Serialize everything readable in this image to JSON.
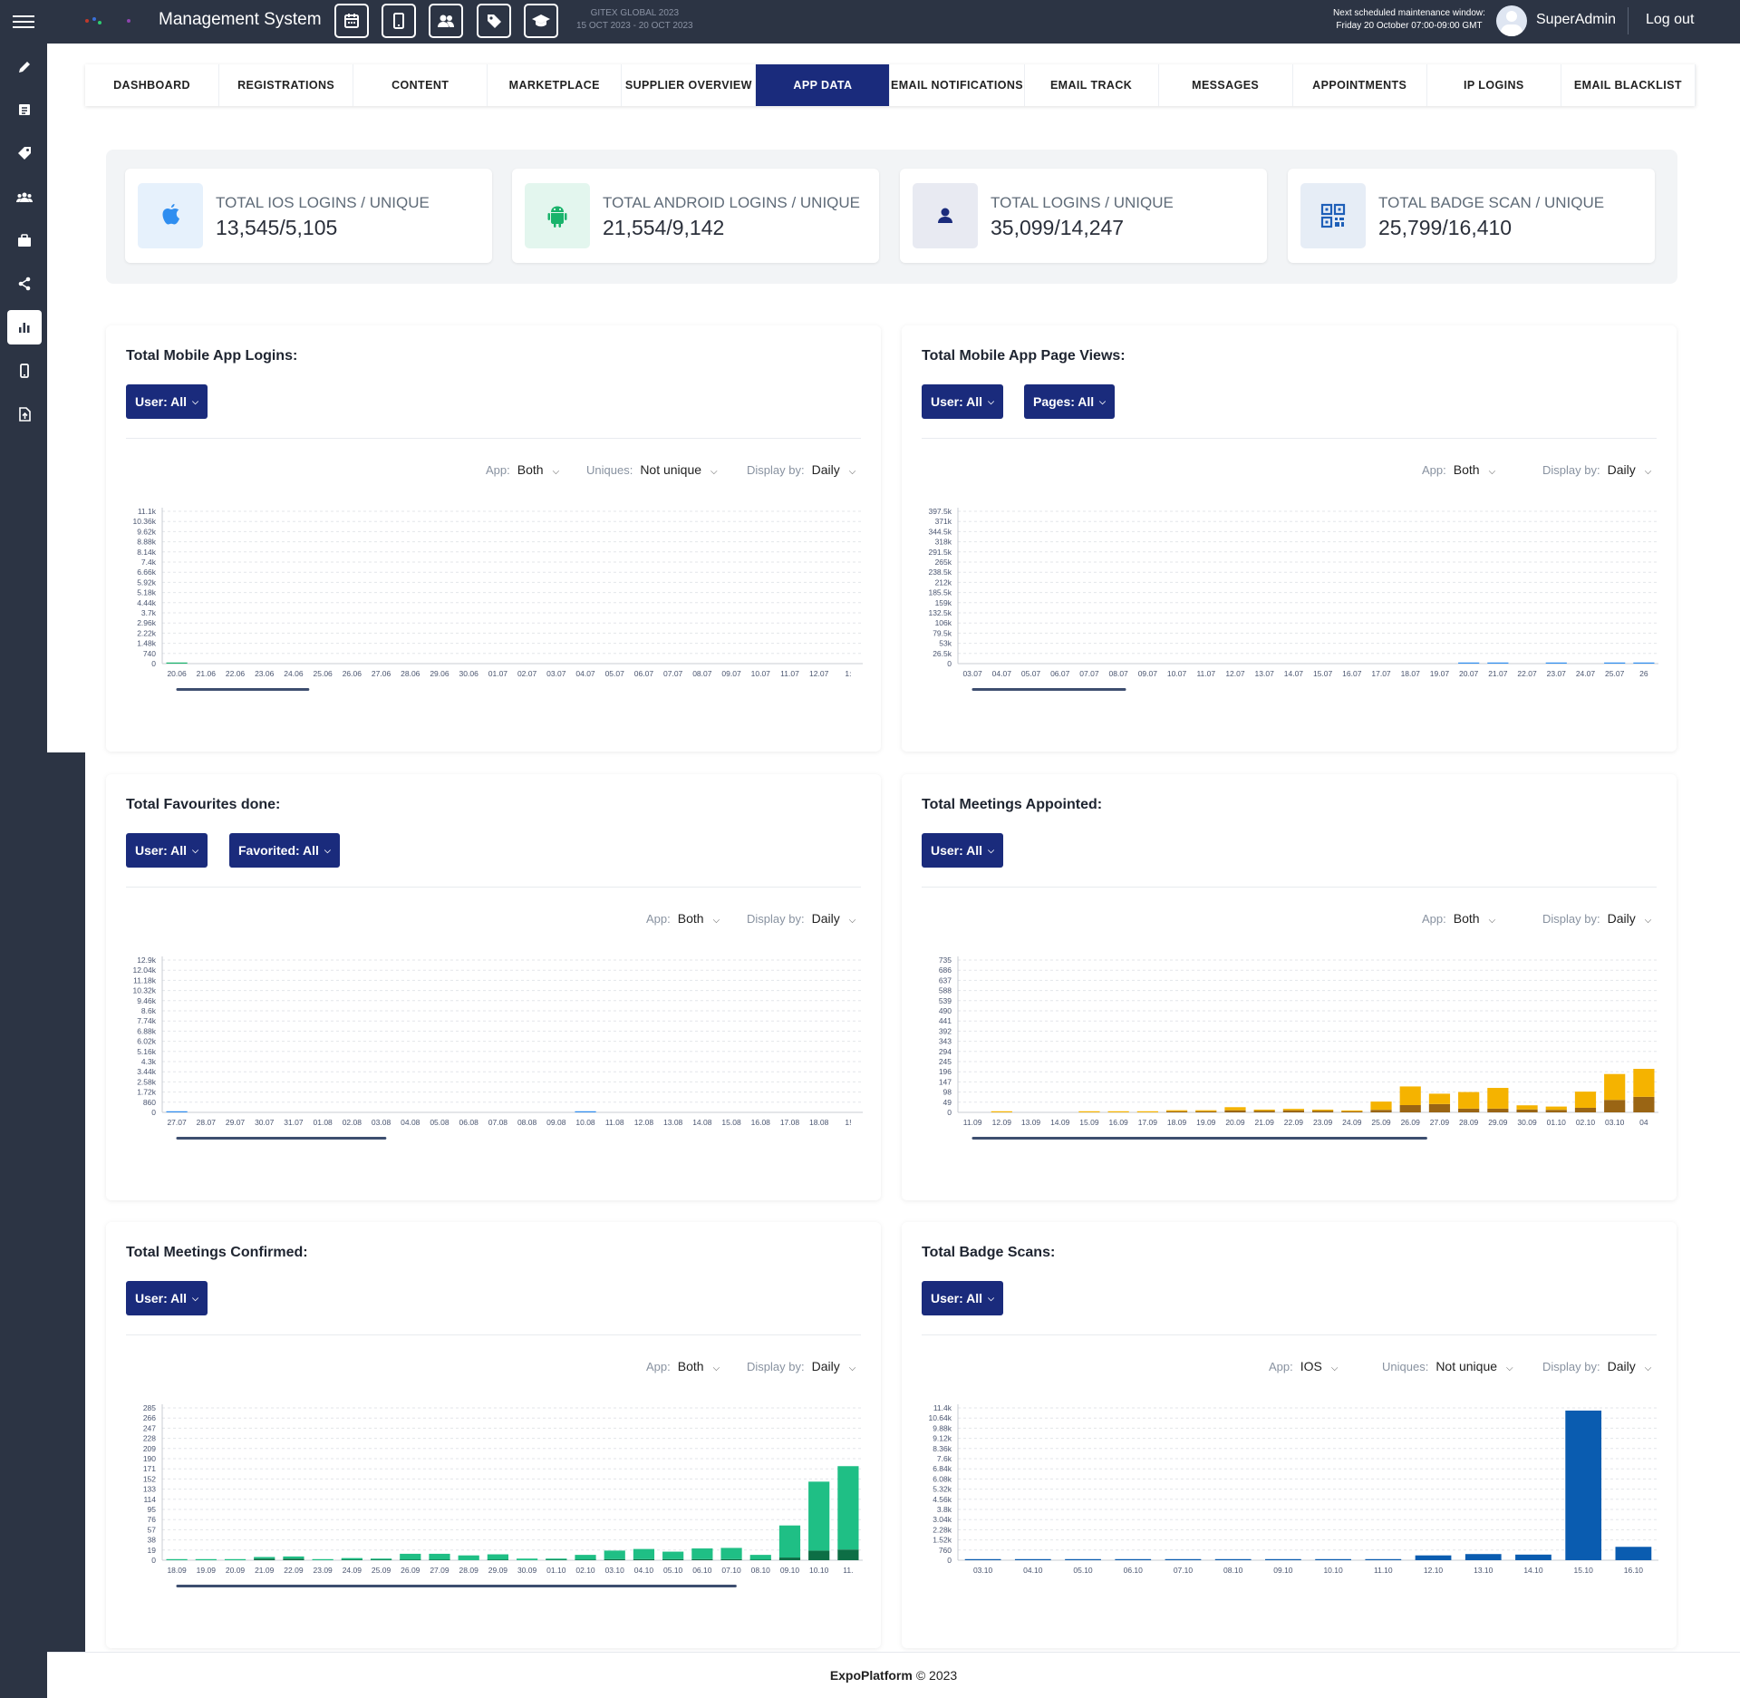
{
  "header": {
    "title": "Management System",
    "event": {
      "name": "GITEX GLOBAL 2023",
      "dates": "15 OCT 2023 - 20 OCT 2023"
    },
    "maintenance": {
      "line1": "Next scheduled maintenance window:",
      "line2": "Friday 20 October 07:00-09:00 GMT"
    },
    "user": "SuperAdmin",
    "logout": "Log out",
    "quick_icons": [
      "calendar-icon",
      "mobile-icon",
      "users-icon",
      "tag-icon",
      "graduation-cap-icon"
    ]
  },
  "sidebar": {
    "icons": [
      "pencil-icon",
      "list-icon",
      "tag-icon",
      "users-icon",
      "briefcase-icon",
      "share-icon",
      "bar-chart-icon",
      "mobile-icon",
      "file-upload-icon"
    ],
    "active": "bar-chart-icon"
  },
  "tabs": [
    "DASHBOARD",
    "REGISTRATIONS",
    "CONTENT",
    "MARKETPLACE",
    "SUPPLIER OVERVIEW",
    "APP DATA",
    "EMAIL NOTIFICATIONS",
    "EMAIL TRACK",
    "MESSAGES",
    "APPOINTMENTS",
    "IP LOGINS",
    "EMAIL BLACKLIST"
  ],
  "active_tab": "APP DATA",
  "stats": [
    {
      "label": "TOTAL IOS LOGINS / UNIQUE",
      "value": "13,545/5,105",
      "icon": "apple-icon",
      "color": "#2f8ef0"
    },
    {
      "label": "TOTAL ANDROID LOGINS / UNIQUE",
      "value": "21,554/9,142",
      "icon": "android-icon",
      "color": "#19b36b"
    },
    {
      "label": "TOTAL LOGINS / UNIQUE",
      "value": "35,099/14,247",
      "icon": "user-icon",
      "color": "#1a2b7c"
    },
    {
      "label": "TOTAL BADGE SCAN / UNIQUE",
      "value": "25,799/16,410",
      "icon": "qrcode-icon",
      "color": "#1e5fb8"
    }
  ],
  "colors": {
    "nav_bg": "#2c3444",
    "accent": "#1a2b7c",
    "ios_blue": "#2f8ef0",
    "android_green": "#19b36b",
    "meetings_orange": "#f5b300",
    "meetings_brown": "#9a6514",
    "confirmed_green": "#1fbf85",
    "confirmed_dark": "#0d6e45",
    "badge_blue": "#0a5cb0",
    "scroll": "#3d4e6f"
  },
  "panels": {
    "logins": {
      "title": "Total Mobile App Logins:",
      "buttons": [
        "User: All"
      ],
      "controls": [
        {
          "label": "App:",
          "value": "Both"
        },
        {
          "label": "Uniques:",
          "value": "Not unique"
        },
        {
          "label": "Display by:",
          "value": "Daily"
        }
      ]
    },
    "pageviews": {
      "title": "Total Mobile App Page Views:",
      "buttons": [
        "User: All",
        "Pages: All"
      ],
      "controls": [
        {
          "label": "App:",
          "value": "Both"
        },
        {
          "label": "Display by:",
          "value": "Daily"
        }
      ]
    },
    "favourites": {
      "title": "Total Favourites done:",
      "buttons": [
        "User: All",
        "Favorited: All"
      ],
      "controls": [
        {
          "label": "App:",
          "value": "Both"
        },
        {
          "label": "Display by:",
          "value": "Daily"
        }
      ]
    },
    "appointed": {
      "title": "Total Meetings Appointed:",
      "buttons": [
        "User: All"
      ],
      "controls": [
        {
          "label": "App:",
          "value": "Both"
        },
        {
          "label": "Display by:",
          "value": "Daily"
        }
      ]
    },
    "confirmed": {
      "title": "Total Meetings Confirmed:",
      "buttons": [
        "User: All"
      ],
      "controls": [
        {
          "label": "App:",
          "value": "Both"
        },
        {
          "label": "Display by:",
          "value": "Daily"
        }
      ]
    },
    "badges": {
      "title": "Total Badge Scans:",
      "buttons": [
        "User: All"
      ],
      "controls": [
        {
          "label": "App:",
          "value": "IOS"
        },
        {
          "label": "Uniques:",
          "value": "Not unique"
        },
        {
          "label": "Display by:",
          "value": "Daily"
        }
      ]
    }
  },
  "chart_data": [
    {
      "id": "logins",
      "type": "bar",
      "stacked": true,
      "yticks": [
        "0",
        "740",
        "1.48k",
        "2.22k",
        "2.96k",
        "3.7k",
        "4.44k",
        "5.18k",
        "5.92k",
        "6.66k",
        "7.4k",
        "8.14k",
        "8.88k",
        "9.62k",
        "10.36k",
        "11.1k"
      ],
      "ylim": [
        0,
        11100
      ],
      "categories": [
        "20.06",
        "21.06",
        "22.06",
        "23.06",
        "24.06",
        "25.06",
        "26.06",
        "27.06",
        "28.06",
        "29.06",
        "30.06",
        "01.07",
        "02.07",
        "03.07",
        "04.07",
        "05.07",
        "06.07",
        "07.07",
        "08.07",
        "09.07",
        "10.07",
        "11.07",
        "12.07",
        "1:"
      ],
      "series": [
        {
          "color": "#2f8ef0",
          "values": [
            0,
            0,
            0,
            0,
            0,
            0,
            0,
            0,
            0,
            0,
            0,
            0,
            0,
            0,
            0,
            0,
            0,
            0,
            0,
            0,
            0,
            0,
            0,
            0
          ]
        },
        {
          "color": "#19b36b",
          "values": [
            5,
            0,
            0,
            0,
            0,
            0,
            0,
            0,
            0,
            0,
            0,
            0,
            0,
            0,
            0,
            0,
            0,
            0,
            0,
            0,
            0,
            0,
            0,
            0
          ]
        }
      ]
    },
    {
      "id": "pageviews",
      "type": "bar",
      "stacked": true,
      "yticks": [
        "0",
        "26.5k",
        "53k",
        "79.5k",
        "106k",
        "132.5k",
        "159k",
        "185.5k",
        "212k",
        "238.5k",
        "265k",
        "291.5k",
        "318k",
        "344.5k",
        "371k",
        "397.5k"
      ],
      "ylim": [
        0,
        397500
      ],
      "categories": [
        "03.07",
        "04.07",
        "05.07",
        "06.07",
        "07.07",
        "08.07",
        "09.07",
        "10.07",
        "11.07",
        "12.07",
        "13.07",
        "14.07",
        "15.07",
        "16.07",
        "17.07",
        "18.07",
        "19.07",
        "20.07",
        "21.07",
        "22.07",
        "23.07",
        "24.07",
        "25.07",
        "26"
      ],
      "series": [
        {
          "color": "#2f8ef0",
          "values": [
            0,
            0,
            0,
            0,
            0,
            0,
            0,
            0,
            0,
            0,
            0,
            0,
            0,
            0,
            0,
            0,
            0,
            200,
            200,
            0,
            200,
            0,
            200,
            100
          ]
        },
        {
          "color": "#19b36b",
          "values": [
            0,
            0,
            0,
            0,
            0,
            0,
            0,
            0,
            0,
            0,
            0,
            0,
            0,
            0,
            0,
            0,
            0,
            0,
            0,
            0,
            0,
            0,
            0,
            0
          ]
        }
      ]
    },
    {
      "id": "favourites",
      "type": "bar",
      "stacked": true,
      "yticks": [
        "0",
        "860",
        "1.72k",
        "2.58k",
        "3.44k",
        "4.3k",
        "5.16k",
        "6.02k",
        "6.88k",
        "7.74k",
        "8.6k",
        "9.46k",
        "10.32k",
        "11.18k",
        "12.04k",
        "12.9k"
      ],
      "ylim": [
        0,
        12900
      ],
      "categories": [
        "27.07",
        "28.07",
        "29.07",
        "30.07",
        "31.07",
        "01.08",
        "02.08",
        "03.08",
        "04.08",
        "05.08",
        "06.08",
        "07.08",
        "08.08",
        "09.08",
        "10.08",
        "11.08",
        "12.08",
        "13.08",
        "14.08",
        "15.08",
        "16.08",
        "17.08",
        "18.08",
        "1!"
      ],
      "series": [
        {
          "color": "#2f8ef0",
          "values": [
            10,
            0,
            0,
            0,
            0,
            0,
            0,
            0,
            0,
            0,
            0,
            0,
            0,
            0,
            8,
            0,
            0,
            0,
            0,
            0,
            0,
            0,
            0,
            0
          ]
        },
        {
          "color": "#19b36b",
          "values": [
            0,
            0,
            0,
            0,
            0,
            0,
            0,
            0,
            0,
            0,
            0,
            0,
            0,
            0,
            0,
            0,
            0,
            0,
            0,
            0,
            0,
            0,
            0,
            0
          ]
        }
      ]
    },
    {
      "id": "appointed",
      "type": "bar",
      "stacked": true,
      "yticks": [
        "0",
        "49",
        "98",
        "147",
        "196",
        "245",
        "294",
        "343",
        "392",
        "441",
        "490",
        "539",
        "588",
        "637",
        "686",
        "735"
      ],
      "ylim": [
        0,
        735
      ],
      "categories": [
        "11.09",
        "12.09",
        "13.09",
        "14.09",
        "15.09",
        "16.09",
        "17.09",
        "18.09",
        "19.09",
        "20.09",
        "21.09",
        "22.09",
        "23.09",
        "24.09",
        "25.09",
        "26.09",
        "27.09",
        "28.09",
        "29.09",
        "30.09",
        "01.10",
        "02.10",
        "03.10",
        "04"
      ],
      "series": [
        {
          "name": "dark",
          "color": "#9a6514",
          "values": [
            0,
            0,
            0,
            0,
            0,
            0,
            0,
            5,
            5,
            10,
            8,
            10,
            8,
            4,
            12,
            35,
            40,
            18,
            18,
            14,
            12,
            22,
            60,
            75
          ]
        },
        {
          "name": "light",
          "color": "#f5b300",
          "values": [
            0,
            2,
            0,
            0,
            3,
            1,
            2,
            3,
            4,
            15,
            5,
            7,
            3,
            2,
            40,
            90,
            50,
            80,
            100,
            20,
            16,
            78,
            125,
            135
          ]
        }
      ]
    },
    {
      "id": "confirmed",
      "type": "bar",
      "stacked": true,
      "yticks": [
        "0",
        "19",
        "38",
        "57",
        "76",
        "95",
        "114",
        "133",
        "152",
        "171",
        "190",
        "209",
        "228",
        "247",
        "266",
        "285"
      ],
      "ylim": [
        0,
        285
      ],
      "categories": [
        "18.09",
        "19.09",
        "20.09",
        "21.09",
        "22.09",
        "23.09",
        "24.09",
        "25.09",
        "26.09",
        "27.09",
        "28.09",
        "29.09",
        "30.09",
        "01.10",
        "02.10",
        "03.10",
        "04.10",
        "05.10",
        "06.10",
        "07.10",
        "08.10",
        "09.10",
        "10.10",
        "11."
      ],
      "series": [
        {
          "name": "dark",
          "color": "#0d6e45",
          "values": [
            0,
            0,
            0,
            3,
            3,
            0,
            1,
            1,
            1,
            1,
            0,
            1,
            0,
            1,
            1,
            2,
            2,
            2,
            2,
            2,
            1,
            5,
            18,
            20
          ]
        },
        {
          "name": "light",
          "color": "#1fbf85",
          "values": [
            1,
            2,
            2,
            3,
            4,
            1,
            3,
            2,
            11,
            11,
            9,
            10,
            3,
            2,
            9,
            16,
            19,
            14,
            20,
            21,
            9,
            60,
            129,
            156
          ]
        }
      ]
    },
    {
      "id": "badges",
      "type": "bar",
      "stacked": false,
      "yticks": [
        "0",
        "760",
        "1.52k",
        "2.28k",
        "3.04k",
        "3.8k",
        "4.56k",
        "5.32k",
        "6.08k",
        "6.84k",
        "7.6k",
        "8.36k",
        "9.12k",
        "9.88k",
        "10.64k",
        "11.4k"
      ],
      "ylim": [
        0,
        11400
      ],
      "categories": [
        "03.10",
        "04.10",
        "05.10",
        "06.10",
        "07.10",
        "08.10",
        "09.10",
        "10.10",
        "11.10",
        "12.10",
        "13.10",
        "14.10",
        "15.10",
        "16.10"
      ],
      "series": [
        {
          "color": "#0a5cb0",
          "values": [
            10,
            10,
            20,
            10,
            10,
            10,
            10,
            10,
            10,
            360,
            460,
            420,
            11200,
            1000
          ]
        }
      ]
    }
  ]
}
